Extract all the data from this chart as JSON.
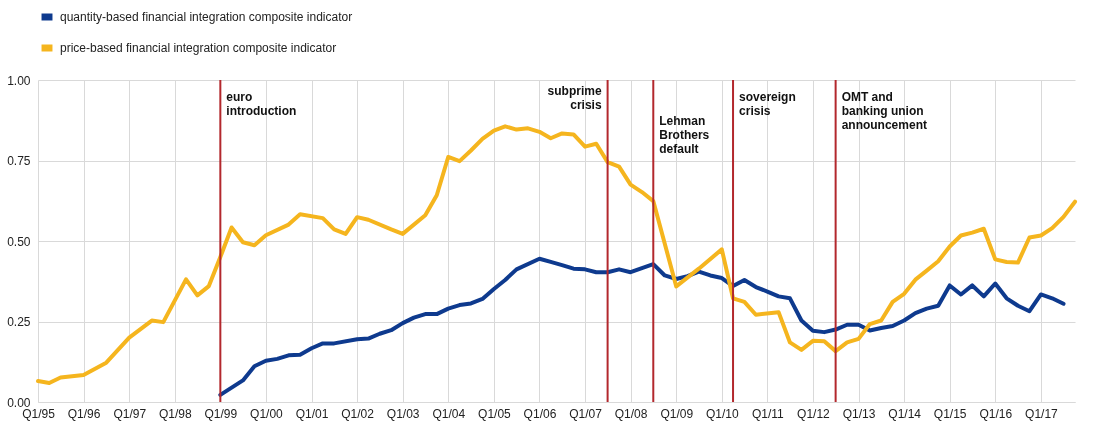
{
  "chart_data": {
    "type": "line",
    "legend": "top left",
    "grid": true,
    "line_style": "solid",
    "marker": "none",
    "xlim": [
      "1995-01",
      "2017-10"
    ],
    "ylim": [
      0,
      1
    ],
    "xticks": [
      {
        "value": "1995-01",
        "label": "Q1/95"
      },
      {
        "value": "1996-01",
        "label": "Q1/96"
      },
      {
        "value": "1997-01",
        "label": "Q1/97"
      },
      {
        "value": "1998-01",
        "label": "Q1/98"
      },
      {
        "value": "1999-01",
        "label": "Q1/99"
      },
      {
        "value": "2000-01",
        "label": "Q1/00"
      },
      {
        "value": "2001-01",
        "label": "Q1/01"
      },
      {
        "value": "2002-01",
        "label": "Q1/02"
      },
      {
        "value": "2003-01",
        "label": "Q1/03"
      },
      {
        "value": "2004-01",
        "label": "Q1/04"
      },
      {
        "value": "2005-01",
        "label": "Q1/05"
      },
      {
        "value": "2006-01",
        "label": "Q1/06"
      },
      {
        "value": "2007-01",
        "label": "Q1/07"
      },
      {
        "value": "2008-01",
        "label": "Q1/08"
      },
      {
        "value": "2009-01",
        "label": "Q1/09"
      },
      {
        "value": "2010-01",
        "label": "Q1/10"
      },
      {
        "value": "2011-01",
        "label": "Q1/11"
      },
      {
        "value": "2012-01",
        "label": "Q1/12"
      },
      {
        "value": "2013-01",
        "label": "Q1/13"
      },
      {
        "value": "2014-01",
        "label": "Q1/14"
      },
      {
        "value": "2015-01",
        "label": "Q1/15"
      },
      {
        "value": "2016-01",
        "label": "Q1/16"
      },
      {
        "value": "2017-01",
        "label": "Q1/17"
      }
    ],
    "yticks": [
      {
        "value": 0,
        "label": "0.00"
      },
      {
        "value": 0.25,
        "label": "0.25"
      },
      {
        "value": 0.5,
        "label": "0.50"
      },
      {
        "value": 0.75,
        "label": "0.75"
      },
      {
        "value": 1,
        "label": "1.00"
      }
    ],
    "series": [
      {
        "name": "quantity-based financial integration composite indicator",
        "color": "#0e3a8e",
        "x": [
          "1999-01",
          "1999-07",
          "1999-10",
          "2000-01",
          "2000-04",
          "2000-07",
          "2000-10",
          "2001-01",
          "2001-04",
          "2001-07",
          "2002-01",
          "2002-04",
          "2002-07",
          "2002-10",
          "2003-01",
          "2003-04",
          "2003-07",
          "2003-10",
          "2004-01",
          "2004-04",
          "2004-07",
          "2004-10",
          "2005-01",
          "2005-04",
          "2005-07",
          "2006-01",
          "2006-04",
          "2006-07",
          "2006-10",
          "2007-01",
          "2007-04",
          "2007-07",
          "2007-10",
          "2008-01",
          "2008-04",
          "2008-07",
          "2008-10",
          "2009-01",
          "2009-04",
          "2009-07",
          "2009-10",
          "2010-01",
          "2010-04",
          "2010-07",
          "2010-10",
          "2011-01",
          "2011-04",
          "2011-07",
          "2011-10",
          "2012-01",
          "2012-04",
          "2012-07",
          "2012-10",
          "2013-01",
          "2013-04",
          "2013-07",
          "2013-10",
          "2014-01",
          "2014-04",
          "2014-07",
          "2014-10",
          "2015-01",
          "2015-04",
          "2015-07",
          "2015-10",
          "2016-01",
          "2016-04",
          "2016-07",
          "2016-10",
          "2017-01",
          "2017-04",
          "2017-07"
        ],
        "values": [
          0.022,
          0.067,
          0.111,
          0.128,
          0.134,
          0.145,
          0.147,
          0.167,
          0.182,
          0.182,
          0.195,
          0.197,
          0.212,
          0.223,
          0.245,
          0.262,
          0.273,
          0.273,
          0.29,
          0.301,
          0.306,
          0.32,
          0.351,
          0.379,
          0.412,
          0.445,
          0.435,
          0.425,
          0.414,
          0.412,
          0.403,
          0.403,
          0.412,
          0.403,
          0.416,
          0.428,
          0.393,
          0.382,
          0.391,
          0.405,
          0.393,
          0.385,
          0.36,
          0.379,
          0.357,
          0.343,
          0.328,
          0.322,
          0.253,
          0.221,
          0.217,
          0.225,
          0.24,
          0.24,
          0.222,
          0.23,
          0.236,
          0.253,
          0.276,
          0.29,
          0.299,
          0.362,
          0.334,
          0.362,
          0.328,
          0.368,
          0.322,
          0.299,
          0.282,
          0.334,
          0.322,
          0.305
        ]
      },
      {
        "name": "price-based financial integration composite indicator",
        "color": "#f5b51e",
        "x": [
          "1995-01",
          "1995-04",
          "1995-07",
          "1996-01",
          "1996-07",
          "1997-01",
          "1997-07",
          "1997-10",
          "1998-04",
          "1998-07",
          "1998-10",
          "1999-01",
          "1999-04",
          "1999-07",
          "1999-10",
          "2000-01",
          "2000-07",
          "2000-10",
          "2001-04",
          "2001-07",
          "2001-10",
          "2002-01",
          "2002-04",
          "2002-10",
          "2003-01",
          "2003-07",
          "2003-10",
          "2004-01",
          "2004-04",
          "2004-07",
          "2004-10",
          "2005-01",
          "2005-04",
          "2005-07",
          "2005-10",
          "2006-01",
          "2006-04",
          "2006-07",
          "2006-10",
          "2007-01",
          "2007-04",
          "2007-07",
          "2007-10",
          "2008-01",
          "2008-04",
          "2008-07",
          "2009-01",
          "2009-07",
          "2010-01",
          "2010-04",
          "2010-07",
          "2010-10",
          "2011-04",
          "2011-07",
          "2011-10",
          "2012-01",
          "2012-04",
          "2012-07",
          "2012-10",
          "2013-01",
          "2013-04",
          "2013-07",
          "2013-10",
          "2014-01",
          "2014-04",
          "2014-07",
          "2014-10",
          "2015-01",
          "2015-04",
          "2015-07",
          "2015-10",
          "2016-01",
          "2016-04",
          "2016-07",
          "2016-10",
          "2017-01",
          "2017-04",
          "2017-07",
          "2017-10"
        ],
        "values": [
          0.065,
          0.059,
          0.076,
          0.084,
          0.122,
          0.2,
          0.253,
          0.248,
          0.381,
          0.331,
          0.36,
          0.45,
          0.542,
          0.496,
          0.487,
          0.518,
          0.551,
          0.583,
          0.571,
          0.536,
          0.522,
          0.574,
          0.566,
          0.536,
          0.522,
          0.58,
          0.642,
          0.761,
          0.748,
          0.781,
          0.817,
          0.843,
          0.856,
          0.846,
          0.85,
          0.839,
          0.819,
          0.834,
          0.831,
          0.793,
          0.802,
          0.745,
          0.731,
          0.675,
          0.652,
          0.624,
          0.359,
          0.414,
          0.474,
          0.322,
          0.311,
          0.271,
          0.279,
          0.185,
          0.162,
          0.19,
          0.189,
          0.158,
          0.185,
          0.196,
          0.242,
          0.253,
          0.311,
          0.336,
          0.38,
          0.408,
          0.437,
          0.483,
          0.517,
          0.526,
          0.538,
          0.443,
          0.435,
          0.433,
          0.511,
          0.517,
          0.54,
          0.575,
          0.622
        ]
      }
    ],
    "ref_lines": [
      {
        "axis": "x",
        "value": "1999-01",
        "label": "euro\nintroduction",
        "color": "#b3282d"
      },
      {
        "axis": "x",
        "value": "2007-07",
        "label": "subprime\ncrisis",
        "color": "#b3282d"
      },
      {
        "axis": "x",
        "value": "2008-07",
        "label": "Lehman\nBrothers\ndefault",
        "color": "#b3282d"
      },
      {
        "axis": "x",
        "value": "2010-04",
        "label": "sovereign\ncrisis",
        "color": "#b3282d"
      },
      {
        "axis": "x",
        "value": "2012-07",
        "label": "OMT and\nbanking union\nannouncement",
        "color": "#b3282d"
      }
    ]
  }
}
